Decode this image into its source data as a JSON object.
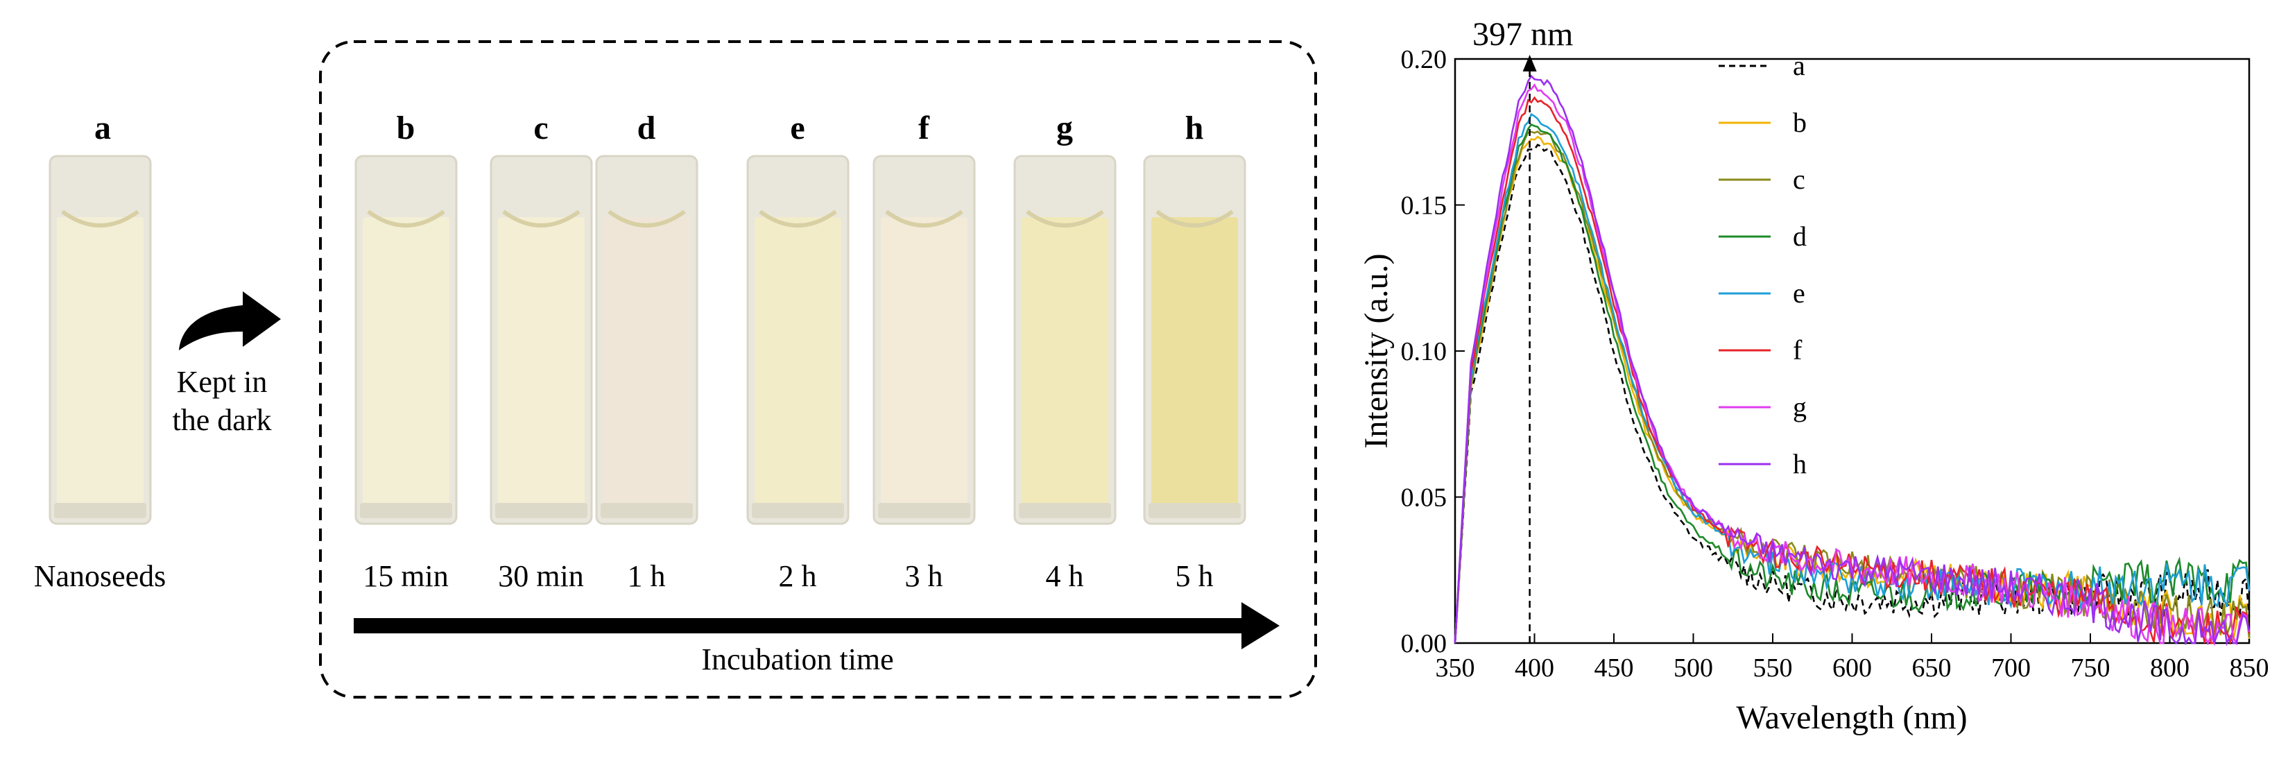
{
  "panel_left": {
    "seed_sample": {
      "letter": "a",
      "label": "Nanoseeds",
      "color": "#f3efd6"
    },
    "arrow_label_line1": "Kept in",
    "arrow_label_line2": "the dark",
    "samples": [
      {
        "letter": "b",
        "time": "15 min",
        "color": "#f3efd4"
      },
      {
        "letter": "c",
        "time": "30 min",
        "color": "#f4eed5"
      },
      {
        "letter": "d",
        "time": "1 h",
        "color": "#efe6d8"
      },
      {
        "letter": "e",
        "time": "2 h",
        "color": "#f2ecc9"
      },
      {
        "letter": "f",
        "time": "3 h",
        "color": "#f3ead8"
      },
      {
        "letter": "g",
        "time": "4 h",
        "color": "#f1e9b9"
      },
      {
        "letter": "h",
        "time": "5 h",
        "color": "#ece09e"
      }
    ],
    "time_axis_label": "Incubation time"
  },
  "chart_data": {
    "type": "line",
    "title": "",
    "xlabel": "Wavelength (nm)",
    "ylabel": "Intensity (a.u.)",
    "xlim": [
      350,
      850
    ],
    "ylim": [
      0,
      0.2
    ],
    "xticks": [
      "350",
      "400",
      "450",
      "500",
      "550",
      "600",
      "650",
      "700",
      "750",
      "800",
      "850"
    ],
    "yticks": [
      "0.00",
      "0.05",
      "0.10",
      "0.15",
      "0.20"
    ],
    "annotation": {
      "text": "397 nm",
      "x": 397
    },
    "x": [
      350,
      360,
      370,
      380,
      390,
      397,
      400,
      410,
      420,
      430,
      440,
      450,
      460,
      470,
      480,
      490,
      500,
      525,
      550,
      575,
      600,
      650,
      700,
      750,
      800,
      850
    ],
    "series": [
      {
        "name": "a",
        "color": "#000000",
        "dash": true,
        "values": [
          0.0,
          0.085,
          0.112,
          0.14,
          0.163,
          0.17,
          0.17,
          0.168,
          0.158,
          0.142,
          0.121,
          0.1,
          0.08,
          0.064,
          0.052,
          0.043,
          0.036,
          0.026,
          0.02,
          0.017,
          0.015,
          0.015,
          0.016,
          0.016,
          0.017,
          0.017
        ]
      },
      {
        "name": "b",
        "color": "#f2b400",
        "dash": false,
        "values": [
          0.0,
          0.088,
          0.115,
          0.143,
          0.166,
          0.173,
          0.173,
          0.171,
          0.163,
          0.148,
          0.129,
          0.109,
          0.09,
          0.073,
          0.061,
          0.051,
          0.044,
          0.035,
          0.03,
          0.027,
          0.025,
          0.022,
          0.019,
          0.017,
          0.01,
          0.008
        ]
      },
      {
        "name": "c",
        "color": "#8a8a1c",
        "dash": false,
        "values": [
          0.0,
          0.088,
          0.116,
          0.144,
          0.167,
          0.175,
          0.175,
          0.173,
          0.165,
          0.15,
          0.131,
          0.111,
          0.092,
          0.075,
          0.062,
          0.052,
          0.045,
          0.036,
          0.031,
          0.028,
          0.026,
          0.022,
          0.019,
          0.016,
          0.009,
          0.007
        ]
      },
      {
        "name": "d",
        "color": "#1d8a2a",
        "dash": false,
        "values": [
          0.0,
          0.09,
          0.118,
          0.146,
          0.169,
          0.177,
          0.177,
          0.174,
          0.164,
          0.148,
          0.127,
          0.106,
          0.086,
          0.069,
          0.056,
          0.046,
          0.039,
          0.028,
          0.022,
          0.019,
          0.017,
          0.017,
          0.018,
          0.019,
          0.021,
          0.022
        ]
      },
      {
        "name": "e",
        "color": "#1e9fd6",
        "dash": false,
        "values": [
          0.0,
          0.091,
          0.12,
          0.148,
          0.172,
          0.18,
          0.18,
          0.177,
          0.168,
          0.153,
          0.133,
          0.112,
          0.093,
          0.076,
          0.063,
          0.053,
          0.045,
          0.034,
          0.027,
          0.024,
          0.022,
          0.02,
          0.019,
          0.019,
          0.02,
          0.02
        ]
      },
      {
        "name": "f",
        "color": "#e8232a",
        "dash": false,
        "values": [
          0.0,
          0.093,
          0.123,
          0.152,
          0.177,
          0.186,
          0.186,
          0.183,
          0.174,
          0.158,
          0.138,
          0.116,
          0.096,
          0.078,
          0.064,
          0.054,
          0.046,
          0.036,
          0.031,
          0.028,
          0.026,
          0.023,
          0.019,
          0.015,
          0.006,
          0.004
        ]
      },
      {
        "name": "g",
        "color": "#e23cf0",
        "dash": false,
        "values": [
          0.0,
          0.095,
          0.126,
          0.156,
          0.181,
          0.19,
          0.19,
          0.187,
          0.178,
          0.162,
          0.141,
          0.119,
          0.098,
          0.08,
          0.066,
          0.055,
          0.047,
          0.037,
          0.031,
          0.028,
          0.026,
          0.023,
          0.019,
          0.014,
          0.005,
          0.003
        ]
      },
      {
        "name": "h",
        "color": "#9b2ff0",
        "dash": false,
        "values": [
          0.0,
          0.096,
          0.128,
          0.159,
          0.185,
          0.194,
          0.194,
          0.191,
          0.181,
          0.164,
          0.143,
          0.12,
          0.099,
          0.081,
          0.066,
          0.055,
          0.047,
          0.037,
          0.031,
          0.028,
          0.026,
          0.023,
          0.019,
          0.014,
          0.004,
          0.002
        ]
      }
    ]
  }
}
